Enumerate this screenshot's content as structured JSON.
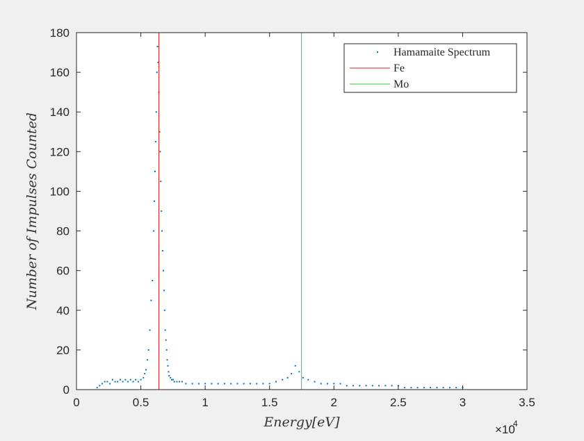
{
  "chart_data": {
    "type": "scatter",
    "xlabel": "Energy[eV]",
    "ylabel": "Number of Impulses Counted",
    "xlim": [
      0,
      35000
    ],
    "ylim": [
      0,
      180
    ],
    "x_exponent_label": "×10",
    "x_exponent_power": "4",
    "x_ticks": [
      0,
      5000,
      10000,
      15000,
      20000,
      25000,
      30000,
      35000
    ],
    "x_tick_labels": [
      "0",
      "0.5",
      "1",
      "1.5",
      "2",
      "2.5",
      "3",
      "3.5"
    ],
    "y_ticks": [
      0,
      20,
      40,
      60,
      80,
      100,
      120,
      140,
      160,
      180
    ],
    "y_tick_labels": [
      "0",
      "20",
      "40",
      "60",
      "80",
      "100",
      "120",
      "140",
      "160",
      "180"
    ],
    "grid": false,
    "legend_position": "top-right",
    "series": [
      {
        "name": "Hamamaite Spectrum",
        "kind": "points",
        "color": "#0072bd",
        "x": [
          1600,
          1800,
          2000,
          2200,
          2400,
          2600,
          2800,
          3000,
          3200,
          3400,
          3600,
          3800,
          4000,
          4200,
          4400,
          4600,
          4800,
          5000,
          5200,
          5300,
          5400,
          5500,
          5600,
          5700,
          5800,
          5900,
          6000,
          6050,
          6100,
          6150,
          6200,
          6250,
          6300,
          6350,
          6400,
          6450,
          6500,
          6550,
          6600,
          6650,
          6700,
          6750,
          6800,
          6850,
          6900,
          6950,
          7000,
          7050,
          7100,
          7150,
          7200,
          7300,
          7400,
          7500,
          7600,
          7800,
          8000,
          8200,
          8500,
          9000,
          9500,
          10000,
          10500,
          11000,
          11500,
          12000,
          12500,
          13000,
          13500,
          14000,
          14500,
          15000,
          15500,
          16000,
          16400,
          16700,
          17000,
          17300,
          17600,
          18000,
          18500,
          19000,
          19500,
          20000,
          20500,
          21000,
          21500,
          22000,
          22500,
          23000,
          23500,
          24000,
          24500,
          25000,
          25500,
          26000,
          26500,
          27000,
          27500,
          28000,
          28500,
          29000,
          29500,
          30000
        ],
        "y": [
          1,
          2,
          3,
          4,
          4,
          3,
          5,
          4,
          4,
          5,
          4,
          5,
          4,
          5,
          4,
          5,
          4,
          5,
          6,
          8,
          10,
          15,
          20,
          30,
          45,
          55,
          80,
          95,
          110,
          125,
          140,
          160,
          173,
          165,
          150,
          130,
          120,
          105,
          90,
          80,
          70,
          60,
          50,
          40,
          30,
          25,
          20,
          15,
          12,
          9,
          7,
          6,
          5,
          5,
          4,
          4,
          4,
          4,
          3,
          3,
          3,
          3,
          3,
          3,
          3,
          3,
          3,
          3,
          3,
          3,
          3,
          3,
          4,
          5,
          6,
          8,
          12,
          9,
          6,
          5,
          4,
          3,
          3,
          3,
          3,
          2,
          2,
          2,
          2,
          2,
          2,
          2,
          2,
          2,
          1,
          1,
          1,
          1,
          1,
          1,
          1,
          1,
          1,
          1
        ]
      },
      {
        "name": "Fe",
        "kind": "vline",
        "color": "#d62728",
        "x": 6400
      },
      {
        "name": "Mo",
        "kind": "vline",
        "color": "#2ecc40",
        "x": 17480
      }
    ]
  }
}
